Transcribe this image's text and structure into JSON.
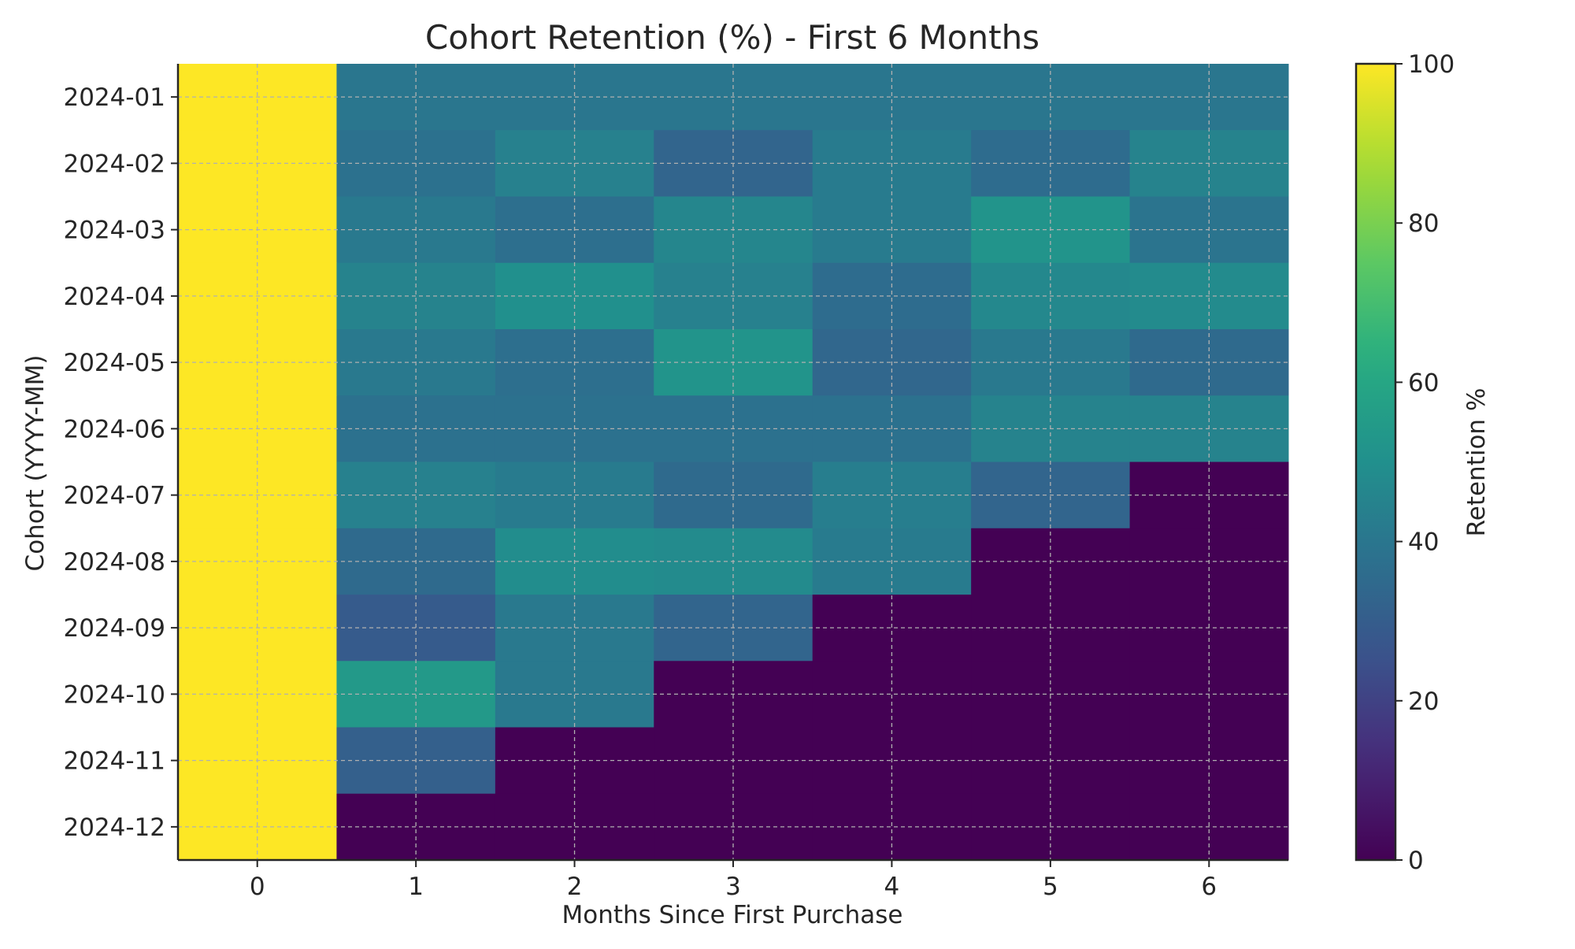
{
  "chart_data": {
    "type": "heatmap",
    "title": "Cohort Retention (%) - First 6 Months",
    "xlabel": "Months Since First Purchase",
    "ylabel": "Cohort (YYYY-MM)",
    "colorbar_label": "Retention %",
    "colormap": "viridis",
    "value_range": [
      0,
      100
    ],
    "colorbar_ticks": [
      0,
      20,
      40,
      60,
      80,
      100
    ],
    "x": [
      0,
      1,
      2,
      3,
      4,
      5,
      6
    ],
    "cohorts": [
      "2024-01",
      "2024-02",
      "2024-03",
      "2024-04",
      "2024-05",
      "2024-06",
      "2024-07",
      "2024-08",
      "2024-09",
      "2024-10",
      "2024-11",
      "2024-12"
    ],
    "values": [
      [
        100,
        40,
        40,
        40,
        40,
        40,
        40
      ],
      [
        100,
        38,
        44,
        33,
        42,
        36,
        45
      ],
      [
        100,
        41,
        37,
        46,
        42,
        52,
        39
      ],
      [
        100,
        45,
        50,
        44,
        36,
        47,
        48
      ],
      [
        100,
        41,
        37,
        52,
        34,
        41,
        35
      ],
      [
        100,
        38,
        38,
        38,
        38,
        45,
        45
      ],
      [
        100,
        44,
        42,
        35,
        43,
        33,
        0
      ],
      [
        100,
        35,
        49,
        48,
        42,
        0,
        0
      ],
      [
        100,
        29,
        41,
        33,
        0,
        0,
        0
      ],
      [
        100,
        54,
        41,
        0,
        0,
        0,
        0
      ],
      [
        100,
        31,
        0,
        0,
        0,
        0,
        0
      ],
      [
        100,
        0,
        0,
        0,
        0,
        0,
        0
      ]
    ],
    "grid": true,
    "grid_style": "dashed"
  }
}
